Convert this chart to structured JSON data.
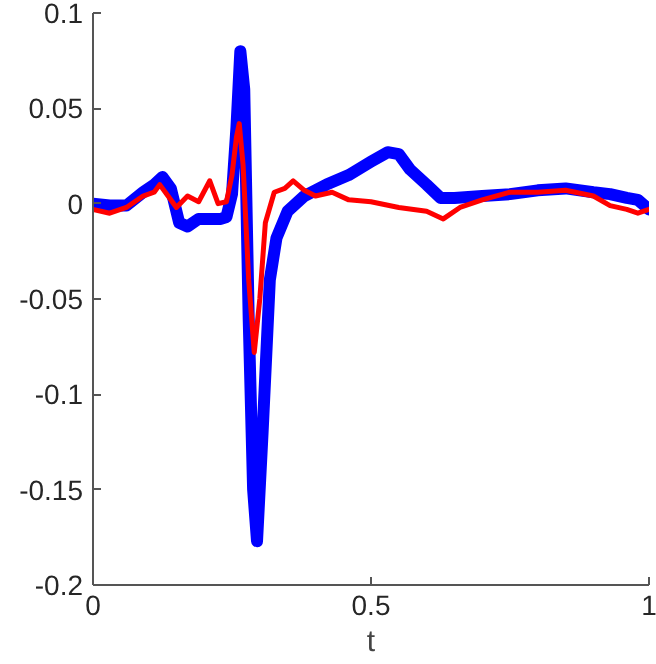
{
  "chart_data": {
    "type": "line",
    "xlabel": "t",
    "xlim": [
      0,
      1
    ],
    "ylim": [
      -0.2,
      0.1
    ],
    "xticks": [
      0,
      0.5,
      1
    ],
    "yticks": [
      -0.2,
      -0.15,
      -0.1,
      -0.05,
      0,
      0.05,
      0.1
    ],
    "grid": false,
    "line_style": "solid",
    "marker": "none",
    "series": [
      {
        "color": "#0000ff",
        "x": [
          0,
          0.03,
          0.06,
          0.09,
          0.11,
          0.125,
          0.14,
          0.155,
          0.17,
          0.19,
          0.21,
          0.23,
          0.24,
          0.25,
          0.258,
          0.265,
          0.272,
          0.28,
          0.288,
          0.295,
          0.305,
          0.318,
          0.33,
          0.35,
          0.38,
          0.42,
          0.46,
          0.5,
          0.53,
          0.55,
          0.57,
          0.6,
          0.625,
          0.65,
          0.7,
          0.75,
          0.8,
          0.85,
          0.9,
          0.93,
          0.96,
          0.98,
          1
        ],
        "values": [
          0,
          -0.001,
          -0.001,
          0.006,
          0.01,
          0.014,
          0.008,
          -0.01,
          -0.012,
          -0.008,
          -0.008,
          -0.008,
          -0.007,
          0.005,
          0.04,
          0.08,
          0.06,
          -0.06,
          -0.15,
          -0.177,
          -0.12,
          -0.04,
          -0.018,
          -0.004,
          0.004,
          0.01,
          0.015,
          0.022,
          0.027,
          0.026,
          0.018,
          0.01,
          0.003,
          0.003,
          0.004,
          0.005,
          0.007,
          0.008,
          0.006,
          0.005,
          0.003,
          0.002,
          -0.003
        ]
      },
      {
        "color": "#ff0000",
        "x": [
          0,
          0.03,
          0.06,
          0.09,
          0.11,
          0.12,
          0.135,
          0.15,
          0.17,
          0.19,
          0.21,
          0.225,
          0.24,
          0.25,
          0.258,
          0.263,
          0.27,
          0.28,
          0.29,
          0.3,
          0.31,
          0.326,
          0.345,
          0.36,
          0.38,
          0.4,
          0.43,
          0.46,
          0.5,
          0.55,
          0.6,
          0.63,
          0.66,
          0.7,
          0.75,
          0.8,
          0.85,
          0.9,
          0.93,
          0.96,
          0.98,
          1
        ],
        "values": [
          -0.003,
          -0.005,
          -0.002,
          0.004,
          0.006,
          0.01,
          0.004,
          -0.002,
          0.004,
          0.001,
          0.012,
          0.0,
          0.001,
          0.015,
          0.035,
          0.042,
          0.02,
          -0.04,
          -0.078,
          -0.05,
          -0.01,
          0.006,
          0.008,
          0.012,
          0.007,
          0.004,
          0.006,
          0.002,
          0.001,
          -0.002,
          -0.004,
          -0.008,
          -0.002,
          0.002,
          0.006,
          0.006,
          0.007,
          0.004,
          -0.001,
          -0.003,
          -0.005,
          -0.003
        ]
      }
    ]
  }
}
